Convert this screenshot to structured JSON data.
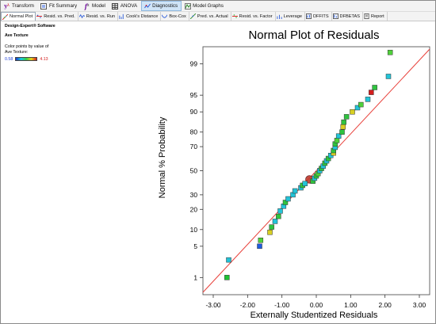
{
  "toolbar": {
    "items": [
      {
        "label": "Transform",
        "icon": "transform-icon"
      },
      {
        "label": "Fit Summary",
        "icon": "fit-summary-icon"
      },
      {
        "label": "Model",
        "icon": "model-fx-icon"
      },
      {
        "label": "ANOVA",
        "icon": "anova-icon"
      },
      {
        "label": "Diagnostics",
        "icon": "diagnostics-icon"
      },
      {
        "label": "Model Graphs",
        "icon": "model-graphs-icon"
      }
    ]
  },
  "tabs": [
    {
      "label": "Normal Plot",
      "active": true
    },
    {
      "label": "Resid. vs. Pred."
    },
    {
      "label": "Resid. vs. Run"
    },
    {
      "label": "Cook's Distance"
    },
    {
      "label": "Box-Cox"
    },
    {
      "label": "Pred. vs. Actual"
    },
    {
      "label": "Resid. vs. Factor"
    },
    {
      "label": "Leverage"
    },
    {
      "label": "DFFITS"
    },
    {
      "label": "DFBETAS"
    },
    {
      "label": "Report"
    }
  ],
  "info": {
    "company": "Design-Expert® Software",
    "response": "Ave Texture",
    "caption_line1": "Color points by value of",
    "caption_line2": "Ave Texture:",
    "min": "0.58",
    "max": "4.13",
    "colors": {
      "low": "#1a37c8",
      "high": "#d41e1e"
    }
  },
  "chart_data": {
    "type": "scatter",
    "title": "Normal Plot of Residuals",
    "xlabel": "Externally Studentized Residuals",
    "ylabel": "Normal % Probability",
    "xlim": [
      -3.3,
      3.3
    ],
    "xticks": [
      "-3.00",
      "-2.00",
      "-1.00",
      "0.00",
      "1.00",
      "2.00",
      "3.00"
    ],
    "xtick_values": [
      -3,
      -2,
      -1,
      0,
      1,
      2,
      3
    ],
    "yscale": "normal-probability",
    "yticks": [
      "1",
      "5",
      "10",
      "20",
      "30",
      "50",
      "70",
      "80",
      "90",
      "95",
      "99"
    ],
    "ytick_values": [
      1,
      5,
      10,
      20,
      30,
      50,
      70,
      80,
      90,
      95,
      99
    ],
    "reference_line": {
      "color": "#e8403a"
    },
    "highlighted_point": {
      "x": -0.2,
      "p": 42.5
    },
    "points": [
      {
        "x": -2.6,
        "p": 1.0,
        "c": "#1ec234"
      },
      {
        "x": -2.55,
        "p": 2.6,
        "c": "#22c2d6"
      },
      {
        "x": -1.65,
        "p": 5.0,
        "c": "#1f5ce0"
      },
      {
        "x": -1.62,
        "p": 6.5,
        "c": "#4fd13a"
      },
      {
        "x": -1.35,
        "p": 9.0,
        "c": "#d8d023"
      },
      {
        "x": -1.3,
        "p": 11.0,
        "c": "#2fc43f"
      },
      {
        "x": -1.2,
        "p": 13.5,
        "c": "#23c4d8"
      },
      {
        "x": -1.1,
        "p": 16.0,
        "c": "#2fc43f"
      },
      {
        "x": -1.05,
        "p": 19.0,
        "c": "#23c4d8"
      },
      {
        "x": -0.95,
        "p": 22.0,
        "c": "#23c4d8"
      },
      {
        "x": -0.9,
        "p": 24.5,
        "c": "#2fc43f"
      },
      {
        "x": -0.82,
        "p": 27.0,
        "c": "#23c4d8"
      },
      {
        "x": -0.68,
        "p": 30.0,
        "c": "#23c4d8"
      },
      {
        "x": -0.62,
        "p": 33.0,
        "c": "#23c4d8"
      },
      {
        "x": -0.45,
        "p": 35.5,
        "c": "#23c4d8"
      },
      {
        "x": -0.4,
        "p": 37.5,
        "c": "#2fc43f"
      },
      {
        "x": -0.33,
        "p": 39.0,
        "c": "#23c4d8"
      },
      {
        "x": -0.1,
        "p": 41.0,
        "c": "#2fc43f"
      },
      {
        "x": -0.05,
        "p": 43.5,
        "c": "#23c4d8"
      },
      {
        "x": 0.0,
        "p": 45.5,
        "c": "#2fc43f"
      },
      {
        "x": 0.05,
        "p": 47.5,
        "c": "#4fd13a"
      },
      {
        "x": 0.1,
        "p": 50.0,
        "c": "#23c4d8"
      },
      {
        "x": 0.15,
        "p": 52.0,
        "c": "#2fc43f"
      },
      {
        "x": 0.2,
        "p": 54.0,
        "c": "#23c4d8"
      },
      {
        "x": 0.25,
        "p": 56.5,
        "c": "#2fc43f"
      },
      {
        "x": 0.3,
        "p": 58.5,
        "c": "#23c4d8"
      },
      {
        "x": 0.35,
        "p": 60.5,
        "c": "#2fc43f"
      },
      {
        "x": 0.42,
        "p": 63.0,
        "c": "#23c4d8"
      },
      {
        "x": 0.5,
        "p": 65.0,
        "c": "#d8d023"
      },
      {
        "x": 0.5,
        "p": 67.0,
        "c": "#2fc43f"
      },
      {
        "x": 0.55,
        "p": 69.5,
        "c": "#23c4d8"
      },
      {
        "x": 0.55,
        "p": 72.0,
        "c": "#2fc43f"
      },
      {
        "x": 0.6,
        "p": 74.5,
        "c": "#4fd13a"
      },
      {
        "x": 0.65,
        "p": 77.5,
        "c": "#23c4d8"
      },
      {
        "x": 0.75,
        "p": 80.0,
        "c": "#2fc43f"
      },
      {
        "x": 0.78,
        "p": 83.0,
        "c": "#d8d023"
      },
      {
        "x": 0.8,
        "p": 85.5,
        "c": "#2fc43f"
      },
      {
        "x": 0.88,
        "p": 88.0,
        "c": "#2fc43f"
      },
      {
        "x": 1.05,
        "p": 90.0,
        "c": "#d8d023"
      },
      {
        "x": 1.2,
        "p": 91.5,
        "c": "#23c4d8"
      },
      {
        "x": 1.3,
        "p": 92.5,
        "c": "#4fd13a"
      },
      {
        "x": 1.5,
        "p": 94.0,
        "c": "#23c4d8"
      },
      {
        "x": 1.6,
        "p": 95.6,
        "c": "#d41e1e"
      },
      {
        "x": 1.7,
        "p": 96.5,
        "c": "#2fc43f"
      },
      {
        "x": 2.1,
        "p": 98.0,
        "c": "#23c4d8"
      },
      {
        "x": 2.15,
        "p": 99.5,
        "c": "#4fd13a"
      }
    ]
  }
}
